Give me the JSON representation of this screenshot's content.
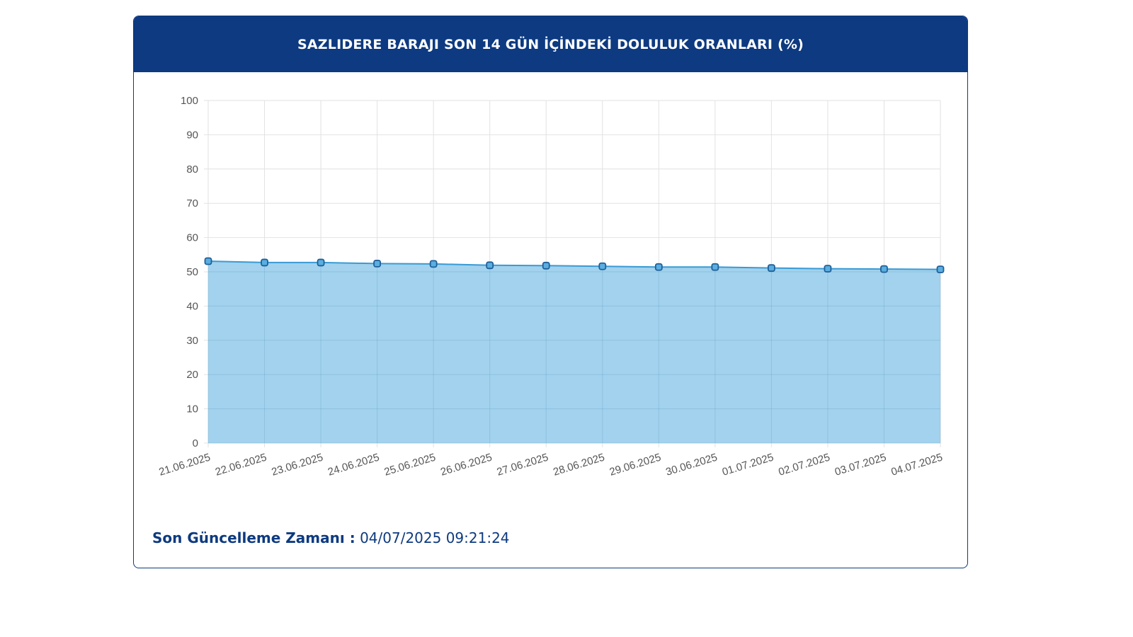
{
  "title": "SAZLIDERE BARAJI SON 14 GÜN İÇİNDEKİ DOLULUK ORANLARI (%)",
  "footer": {
    "label": "Son Güncelleme Zamanı :",
    "value": "04/07/2025 09:21:24"
  },
  "chart_data": {
    "type": "area",
    "title": "SAZLIDERE BARAJI SON 14 GÜN İÇİNDEKİ DOLULUK ORANLARI (%)",
    "categories": [
      "21.06.2025",
      "22.06.2025",
      "23.06.2025",
      "24.06.2025",
      "25.06.2025",
      "26.06.2025",
      "27.06.2025",
      "28.06.2025",
      "29.06.2025",
      "30.06.2025",
      "01.07.2025",
      "02.07.2025",
      "03.07.2025",
      "04.07.2025"
    ],
    "values": [
      53.1,
      52.7,
      52.7,
      52.4,
      52.3,
      51.9,
      51.8,
      51.6,
      51.4,
      51.4,
      51.1,
      50.9,
      50.8,
      50.7
    ],
    "ylim": [
      0,
      100
    ],
    "yticks": [
      "0",
      "10",
      "20",
      "30",
      "40",
      "50",
      "60",
      "70",
      "80",
      "90",
      "100"
    ],
    "grid": true,
    "colors": {
      "fill": "#9dd0ec",
      "line": "#3a9ad4",
      "point": "#1f5f99"
    }
  }
}
